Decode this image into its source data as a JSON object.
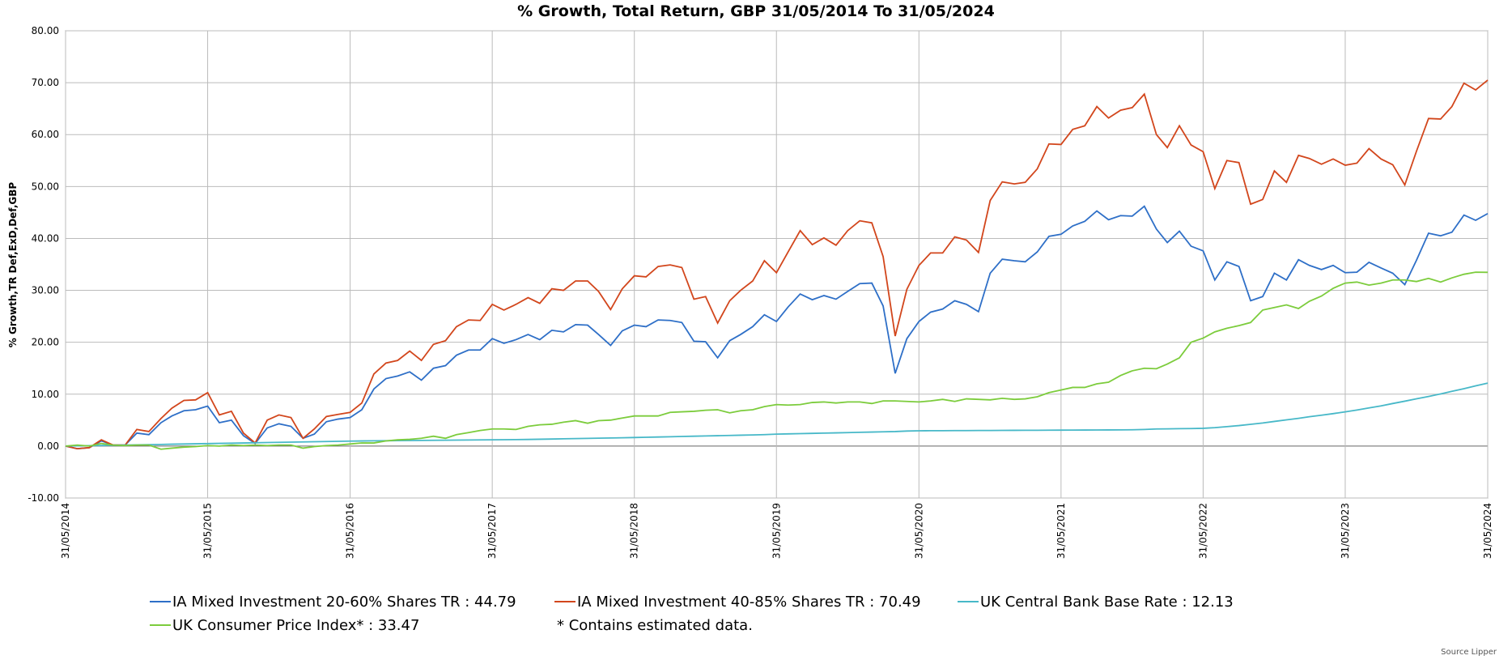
{
  "chart_data": {
    "type": "line",
    "title": "% Growth, Total Return, GBP 31/05/2014 To 31/05/2024",
    "y_label": "% Growth,TR Def,ExD,Def,GBP",
    "note": "*  Contains estimated data.",
    "source": "Source Lipper",
    "grid": true,
    "xlim": [
      "31/05/2014",
      "31/05/2024"
    ],
    "xticks": [
      "31/05/2014",
      "31/05/2015",
      "31/05/2016",
      "31/05/2017",
      "31/05/2018",
      "31/05/2019",
      "31/05/2020",
      "31/05/2021",
      "31/05/2022",
      "31/05/2023",
      "31/05/2024"
    ],
    "ylim": [
      -10,
      80
    ],
    "yticks": [
      {
        "value": -10,
        "label": "-10.00"
      },
      {
        "value": 0,
        "label": "0.00"
      },
      {
        "value": 10,
        "label": "10.00"
      },
      {
        "value": 20,
        "label": "20.00"
      },
      {
        "value": 30,
        "label": "30.00"
      },
      {
        "value": 40,
        "label": "40.00"
      },
      {
        "value": 50,
        "label": "50.00"
      },
      {
        "value": 60,
        "label": "60.00"
      },
      {
        "value": 70,
        "label": "70.00"
      },
      {
        "value": 80,
        "label": "80.00"
      }
    ],
    "x": [
      "31/05/2014",
      "30/06/2014",
      "31/07/2014",
      "31/08/2014",
      "30/09/2014",
      "31/10/2014",
      "30/11/2014",
      "31/12/2014",
      "31/01/2015",
      "28/02/2015",
      "31/03/2015",
      "30/04/2015",
      "31/05/2015",
      "30/06/2015",
      "31/07/2015",
      "31/08/2015",
      "30/09/2015",
      "31/10/2015",
      "30/11/2015",
      "31/12/2015",
      "31/01/2016",
      "29/02/2016",
      "31/03/2016",
      "30/04/2016",
      "31/05/2016",
      "30/06/2016",
      "31/07/2016",
      "31/08/2016",
      "30/09/2016",
      "31/10/2016",
      "30/11/2016",
      "31/12/2016",
      "31/01/2017",
      "28/02/2017",
      "31/03/2017",
      "30/04/2017",
      "31/05/2017",
      "30/06/2017",
      "31/07/2017",
      "31/08/2017",
      "30/09/2017",
      "31/10/2017",
      "30/11/2017",
      "31/12/2017",
      "31/01/2018",
      "28/02/2018",
      "31/03/2018",
      "30/04/2018",
      "31/05/2018",
      "30/06/2018",
      "31/07/2018",
      "31/08/2018",
      "30/09/2018",
      "31/10/2018",
      "30/11/2018",
      "31/12/2018",
      "31/01/2019",
      "28/02/2019",
      "31/03/2019",
      "30/04/2019",
      "31/05/2019",
      "30/06/2019",
      "31/07/2019",
      "31/08/2019",
      "30/09/2019",
      "31/10/2019",
      "30/11/2019",
      "31/12/2019",
      "31/01/2020",
      "29/02/2020",
      "31/03/2020",
      "30/04/2020",
      "31/05/2020",
      "30/06/2020",
      "31/07/2020",
      "31/08/2020",
      "30/09/2020",
      "31/10/2020",
      "30/11/2020",
      "31/12/2020",
      "31/01/2021",
      "28/02/2021",
      "31/03/2021",
      "30/04/2021",
      "31/05/2021",
      "30/06/2021",
      "31/07/2021",
      "31/08/2021",
      "30/09/2021",
      "31/10/2021",
      "30/11/2021",
      "31/12/2021",
      "31/01/2022",
      "28/02/2022",
      "31/03/2022",
      "30/04/2022",
      "31/05/2022",
      "30/06/2022",
      "31/07/2022",
      "31/08/2022",
      "30/09/2022",
      "31/10/2022",
      "30/11/2022",
      "31/12/2022",
      "31/01/2023",
      "28/02/2023",
      "31/03/2023",
      "30/04/2023",
      "31/05/2023",
      "30/06/2023",
      "31/07/2023",
      "31/08/2023",
      "30/09/2023",
      "31/10/2023",
      "30/11/2023",
      "31/12/2023",
      "31/01/2024",
      "29/02/2024",
      "31/03/2024",
      "30/04/2024",
      "31/05/2024"
    ],
    "series": [
      {
        "name": "IA Mixed Investment 20-60% Shares TR : 44.79",
        "color": "#2e6fc7",
        "values": [
          0,
          -0.5,
          -0.3,
          1.0,
          0.2,
          0.2,
          2.5,
          2.2,
          4.5,
          5.8,
          6.8,
          7.0,
          7.7,
          4.5,
          5.0,
          2.0,
          0.5,
          3.5,
          4.3,
          3.8,
          1.5,
          2.3,
          4.7,
          5.2,
          5.5,
          7.0,
          11.0,
          13.0,
          13.5,
          14.3,
          12.7,
          15.0,
          15.5,
          17.5,
          18.5,
          18.5,
          20.7,
          19.8,
          20.5,
          21.5,
          20.5,
          22.3,
          22.0,
          23.4,
          23.3,
          21.5,
          19.4,
          22.2,
          23.3,
          23.0,
          24.3,
          24.2,
          23.8,
          20.2,
          20.1,
          17.0,
          20.3,
          21.5,
          23.0,
          25.3,
          24.0,
          26.8,
          29.3,
          28.2,
          29.0,
          28.3,
          29.8,
          31.3,
          31.4,
          27.0,
          14.0,
          20.7,
          24.0,
          25.8,
          26.4,
          28.0,
          27.3,
          25.9,
          33.3,
          36.0,
          35.7,
          35.5,
          37.4,
          40.4,
          40.8,
          42.4,
          43.3,
          45.3,
          43.6,
          44.4,
          44.3,
          46.2,
          41.8,
          39.2,
          41.4,
          38.5,
          37.6,
          32.0,
          35.5,
          34.6,
          28.0,
          28.8,
          33.3,
          32.0,
          35.9,
          34.8,
          34.0,
          34.8,
          33.4,
          33.5,
          35.4,
          34.3,
          33.3,
          31.1,
          35.8,
          41.0,
          40.5,
          41.2,
          44.5,
          43.5,
          44.79
        ]
      },
      {
        "name": "IA Mixed Investment 40-85% Shares TR : 70.49",
        "color": "#d2461c",
        "values": [
          0,
          -0.5,
          -0.3,
          1.2,
          0.2,
          0.2,
          3.2,
          2.8,
          5.3,
          7.3,
          8.8,
          8.9,
          10.3,
          6.0,
          6.7,
          2.5,
          0.6,
          5.0,
          6.0,
          5.5,
          1.5,
          3.3,
          5.7,
          6.1,
          6.5,
          8.3,
          13.9,
          16.0,
          16.5,
          18.3,
          16.5,
          19.6,
          20.3,
          23.0,
          24.3,
          24.2,
          27.3,
          26.2,
          27.3,
          28.6,
          27.5,
          30.3,
          30.0,
          31.8,
          31.8,
          29.8,
          26.3,
          30.3,
          32.8,
          32.6,
          34.6,
          34.9,
          34.4,
          28.3,
          28.8,
          23.7,
          28.0,
          30.0,
          31.8,
          35.7,
          33.4,
          37.4,
          41.5,
          38.8,
          40.1,
          38.7,
          41.5,
          43.4,
          43.0,
          36.5,
          21.2,
          30.2,
          34.8,
          37.2,
          37.2,
          40.3,
          39.7,
          37.3,
          47.3,
          50.9,
          50.5,
          50.8,
          53.4,
          58.2,
          58.1,
          61.0,
          61.7,
          65.4,
          63.2,
          64.7,
          65.2,
          67.8,
          60.0,
          57.5,
          61.7,
          58.0,
          56.7,
          49.6,
          55.0,
          54.6,
          46.6,
          47.5,
          53.0,
          50.8,
          56.0,
          55.4,
          54.3,
          55.3,
          54.1,
          54.5,
          57.3,
          55.3,
          54.2,
          50.3,
          56.8,
          63.1,
          63.0,
          65.4,
          69.9,
          68.6,
          70.49
        ]
      },
      {
        "name": "UK Central Bank Base Rate : 12.13",
        "color": "#47b8c8",
        "values": [
          0,
          0.04,
          0.08,
          0.12,
          0.16,
          0.2,
          0.24,
          0.28,
          0.32,
          0.36,
          0.4,
          0.44,
          0.48,
          0.52,
          0.56,
          0.6,
          0.64,
          0.68,
          0.72,
          0.76,
          0.8,
          0.84,
          0.88,
          0.92,
          0.96,
          0.99,
          1.01,
          1.03,
          1.05,
          1.07,
          1.09,
          1.11,
          1.13,
          1.15,
          1.17,
          1.19,
          1.21,
          1.23,
          1.25,
          1.28,
          1.32,
          1.36,
          1.4,
          1.44,
          1.48,
          1.52,
          1.56,
          1.6,
          1.65,
          1.7,
          1.75,
          1.8,
          1.85,
          1.9,
          1.95,
          2.0,
          2.05,
          2.1,
          2.15,
          2.2,
          2.3,
          2.35,
          2.4,
          2.45,
          2.5,
          2.55,
          2.6,
          2.65,
          2.7,
          2.75,
          2.8,
          2.9,
          2.95,
          2.96,
          2.97,
          2.98,
          2.99,
          3.0,
          3.01,
          3.02,
          3.03,
          3.04,
          3.05,
          3.06,
          3.07,
          3.08,
          3.09,
          3.1,
          3.11,
          3.12,
          3.14,
          3.2,
          3.3,
          3.32,
          3.35,
          3.38,
          3.42,
          3.55,
          3.75,
          3.95,
          4.2,
          4.45,
          4.75,
          5.05,
          5.35,
          5.65,
          5.95,
          6.25,
          6.6,
          6.95,
          7.35,
          7.75,
          8.2,
          8.65,
          9.1,
          9.55,
          10.05,
          10.55,
          11.05,
          11.6,
          12.13
        ]
      },
      {
        "name": "UK Consumer Price Index* : 33.47",
        "color": "#7ccc3c",
        "values": [
          0,
          0.2,
          0,
          0.5,
          0.2,
          0.1,
          0.2,
          0.2,
          -0.6,
          -0.4,
          -0.2,
          -0.1,
          0.1,
          0.0,
          0.2,
          0.1,
          0.2,
          0.1,
          0.2,
          0.2,
          -0.4,
          -0.1,
          0.1,
          0.2,
          0.4,
          0.6,
          0.6,
          1.0,
          1.2,
          1.3,
          1.5,
          1.9,
          1.5,
          2.2,
          2.6,
          3.0,
          3.3,
          3.3,
          3.2,
          3.8,
          4.1,
          4.2,
          4.6,
          4.9,
          4.4,
          4.9,
          5.0,
          5.4,
          5.8,
          5.8,
          5.8,
          6.5,
          6.6,
          6.7,
          6.9,
          7.0,
          6.4,
          6.8,
          7.0,
          7.6,
          8.0,
          7.9,
          8.0,
          8.4,
          8.5,
          8.3,
          8.5,
          8.5,
          8.2,
          8.7,
          8.7,
          8.6,
          8.5,
          8.7,
          9.0,
          8.6,
          9.1,
          9.0,
          8.9,
          9.2,
          9.0,
          9.1,
          9.5,
          10.3,
          10.8,
          11.3,
          11.3,
          12.0,
          12.3,
          13.6,
          14.5,
          15.0,
          14.9,
          15.8,
          17.0,
          20.0,
          20.8,
          22.0,
          22.7,
          23.2,
          23.8,
          26.2,
          26.7,
          27.2,
          26.5,
          27.9,
          28.9,
          30.4,
          31.4,
          31.6,
          31.0,
          31.4,
          32.0,
          32.0,
          31.7,
          32.3,
          31.6,
          32.4,
          33.1,
          33.5,
          33.47
        ]
      }
    ]
  }
}
